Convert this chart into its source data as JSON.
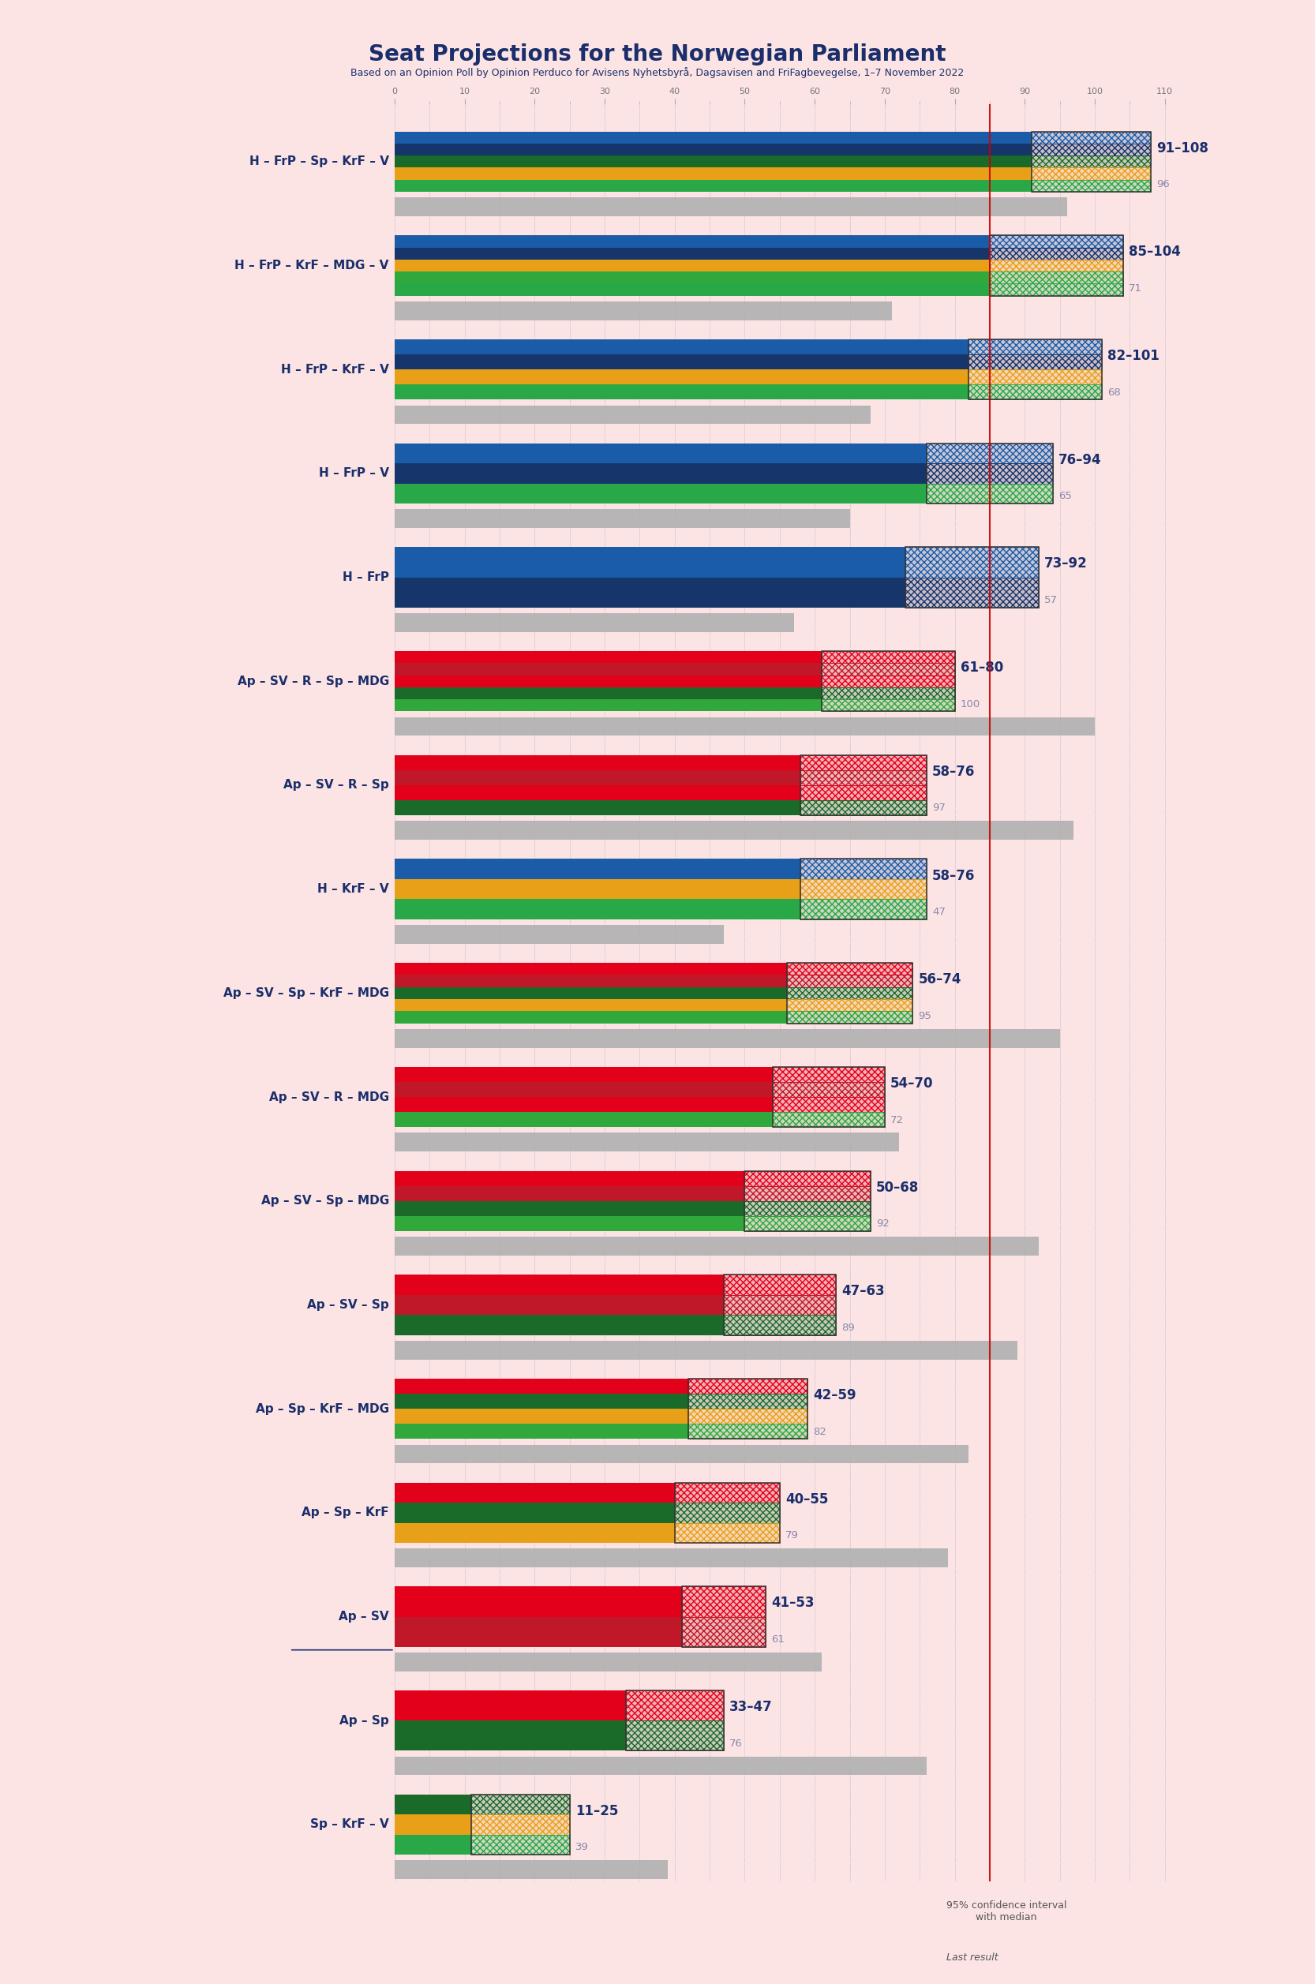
{
  "title": "Seat Projections for the Norwegian Parliament",
  "subtitle": "Based on an Opinion Poll by Opinion Perduco for Avisens Nyhetsbyrå, Dagsavisen and FriFagbevegelse, 1–7 November 2022",
  "background_color": "#fce4e4",
  "majority_line": 85,
  "x_max": 110,
  "coalitions": [
    {
      "name": "H – FrP – Sp – KrF – V",
      "ci_low": 91,
      "ci_high": 108,
      "last": 96,
      "underline": false,
      "parties": [
        "H",
        "FrP",
        "Sp",
        "KrF",
        "V"
      ]
    },
    {
      "name": "H – FrP – KrF – MDG – V",
      "ci_low": 85,
      "ci_high": 104,
      "last": 71,
      "underline": false,
      "parties": [
        "H",
        "FrP",
        "KrF",
        "MDG",
        "V"
      ]
    },
    {
      "name": "H – FrP – KrF – V",
      "ci_low": 82,
      "ci_high": 101,
      "last": 68,
      "underline": false,
      "parties": [
        "H",
        "FrP",
        "KrF",
        "V"
      ]
    },
    {
      "name": "H – FrP – V",
      "ci_low": 76,
      "ci_high": 94,
      "last": 65,
      "underline": false,
      "parties": [
        "H",
        "FrP",
        "V"
      ]
    },
    {
      "name": "H – FrP",
      "ci_low": 73,
      "ci_high": 92,
      "last": 57,
      "underline": false,
      "parties": [
        "H",
        "FrP"
      ]
    },
    {
      "name": "Ap – SV – R – Sp – MDG",
      "ci_low": 61,
      "ci_high": 80,
      "last": 100,
      "underline": false,
      "parties": [
        "Ap",
        "SV",
        "R",
        "Sp",
        "MDG"
      ]
    },
    {
      "name": "Ap – SV – R – Sp",
      "ci_low": 58,
      "ci_high": 76,
      "last": 97,
      "underline": false,
      "parties": [
        "Ap",
        "SV",
        "R",
        "Sp"
      ]
    },
    {
      "name": "H – KrF – V",
      "ci_low": 58,
      "ci_high": 76,
      "last": 47,
      "underline": false,
      "parties": [
        "H",
        "KrF",
        "V"
      ]
    },
    {
      "name": "Ap – SV – Sp – KrF – MDG",
      "ci_low": 56,
      "ci_high": 74,
      "last": 95,
      "underline": false,
      "parties": [
        "Ap",
        "SV",
        "Sp",
        "KrF",
        "MDG"
      ]
    },
    {
      "name": "Ap – SV – R – MDG",
      "ci_low": 54,
      "ci_high": 70,
      "last": 72,
      "underline": false,
      "parties": [
        "Ap",
        "SV",
        "R",
        "MDG"
      ]
    },
    {
      "name": "Ap – SV – Sp – MDG",
      "ci_low": 50,
      "ci_high": 68,
      "last": 92,
      "underline": false,
      "parties": [
        "Ap",
        "SV",
        "Sp",
        "MDG"
      ]
    },
    {
      "name": "Ap – SV – Sp",
      "ci_low": 47,
      "ci_high": 63,
      "last": 89,
      "underline": false,
      "parties": [
        "Ap",
        "SV",
        "Sp"
      ]
    },
    {
      "name": "Ap – Sp – KrF – MDG",
      "ci_low": 42,
      "ci_high": 59,
      "last": 82,
      "underline": false,
      "parties": [
        "Ap",
        "Sp",
        "KrF",
        "MDG"
      ]
    },
    {
      "name": "Ap – Sp – KrF",
      "ci_low": 40,
      "ci_high": 55,
      "last": 79,
      "underline": false,
      "parties": [
        "Ap",
        "Sp",
        "KrF"
      ]
    },
    {
      "name": "Ap – SV",
      "ci_low": 41,
      "ci_high": 53,
      "last": 61,
      "underline": true,
      "parties": [
        "Ap",
        "SV"
      ]
    },
    {
      "name": "Ap – Sp",
      "ci_low": 33,
      "ci_high": 47,
      "last": 76,
      "underline": false,
      "parties": [
        "Ap",
        "Sp"
      ]
    },
    {
      "name": "Sp – KrF – V",
      "ci_low": 11,
      "ci_high": 25,
      "last": 39,
      "underline": false,
      "parties": [
        "Sp",
        "KrF",
        "V"
      ]
    }
  ],
  "party_colors": {
    "H": "#1a5ca8",
    "FrP": "#16356a",
    "Sp": "#1a6b2a",
    "KrF": "#e8a018",
    "V": "#28a846",
    "Ap": "#e2001a",
    "SV": "#c01828",
    "R": "#e2001a",
    "MDG": "#30a83c"
  },
  "label_color": "#1a2e6b",
  "gray_color": "#b0b0b0",
  "last_label_color": "#8888aa",
  "red_line_color": "#cc0000",
  "grid_line_color": "#aaaaaa",
  "legend_ci_text": "95% confidence interval\nwith median",
  "legend_last_text": "Last result"
}
